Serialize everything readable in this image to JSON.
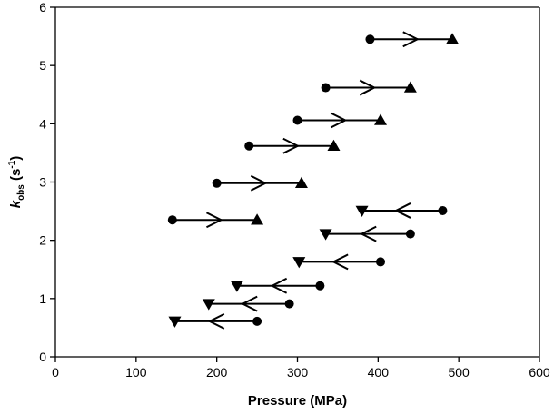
{
  "chart_data": {
    "type": "scatter",
    "xlabel": "Pressure (MPa)",
    "ylabel_main": "k",
    "ylabel_sub": "obs",
    "ylabel_unit_pre": " (s",
    "ylabel_unit_sup": "-1",
    "ylabel_unit_post": ")",
    "xlim": [
      0,
      600
    ],
    "ylim": [
      0,
      6
    ],
    "xticks": [
      0,
      100,
      200,
      300,
      400,
      500,
      600
    ],
    "yticks": [
      0,
      1,
      2,
      3,
      4,
      5,
      6
    ],
    "grid": false,
    "series": [
      {
        "direction": "increasing",
        "from_marker": "circle",
        "to_marker": "triangle-up",
        "segments": [
          {
            "x_start": 145,
            "x_end": 250,
            "y": 2.35
          },
          {
            "x_start": 200,
            "x_end": 305,
            "y": 2.98
          },
          {
            "x_start": 240,
            "x_end": 345,
            "y": 3.62
          },
          {
            "x_start": 300,
            "x_end": 403,
            "y": 4.06
          },
          {
            "x_start": 335,
            "x_end": 440,
            "y": 4.62
          },
          {
            "x_start": 390,
            "x_end": 492,
            "y": 5.45
          }
        ]
      },
      {
        "direction": "decreasing",
        "from_marker": "circle",
        "to_marker": "triangle-down",
        "segments": [
          {
            "x_start": 250,
            "x_end": 148,
            "y": 0.61
          },
          {
            "x_start": 290,
            "x_end": 190,
            "y": 0.91
          },
          {
            "x_start": 328,
            "x_end": 225,
            "y": 1.22
          },
          {
            "x_start": 403,
            "x_end": 302,
            "y": 1.63
          },
          {
            "x_start": 440,
            "x_end": 335,
            "y": 2.11
          },
          {
            "x_start": 480,
            "x_end": 380,
            "y": 2.51
          }
        ]
      }
    ]
  }
}
